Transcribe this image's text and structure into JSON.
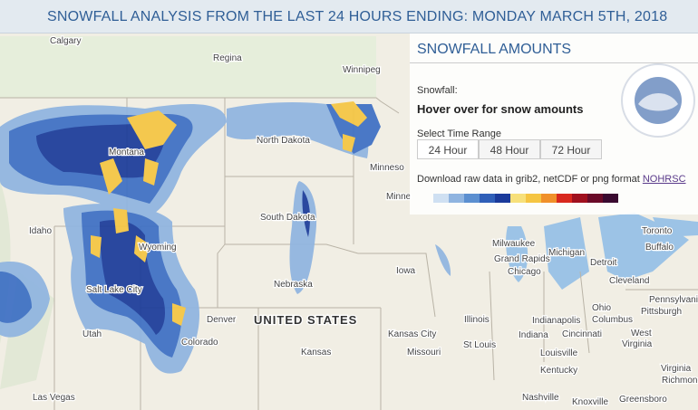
{
  "header": {
    "title": "SNOWFALL ANALYSIS FROM THE LAST 24 HOURS ENDING: MONDAY MARCH 5TH, 2018"
  },
  "panel": {
    "title": "SNOWFALL AMOUNTS",
    "snowfall_label": "Snowfall:",
    "hover_text": "Hover over for snow amounts",
    "range_label": "Select Time Range",
    "buttons": [
      "24 Hour",
      "48 Hour",
      "72 Hour"
    ],
    "download_text": "Download raw data in grib2, netCDF or png format",
    "download_link": "NOHRSC"
  },
  "map": {
    "country": "UNITED STATES",
    "labels": [
      "Calgary",
      "Regina",
      "Winnipeg",
      "Montana",
      "North Dakota",
      "Minneso",
      "Minne",
      "Idaho",
      "Wyoming",
      "South Dakota",
      "Nebraska",
      "Salt Lake City",
      "Utah",
      "Denver",
      "Colorado",
      "Kansas",
      "Kansas City",
      "Missouri",
      "St Louis",
      "Iowa",
      "Illinois",
      "Milwaukee",
      "Michigan",
      "Grand Rapids",
      "Chicago",
      "Detroit",
      "Cleveland",
      "Toronto",
      "Buffalo",
      "Pennsylvania",
      "Pittsburgh",
      "Ohio",
      "Columbus",
      "Indiana",
      "Indianapolis",
      "Cincinnati",
      "West",
      "Virginia",
      "Louisville",
      "Kentucky",
      "Virginia",
      "Richmond",
      "Nashville",
      "Knoxville",
      "Greensboro",
      "Las Vegas"
    ]
  }
}
